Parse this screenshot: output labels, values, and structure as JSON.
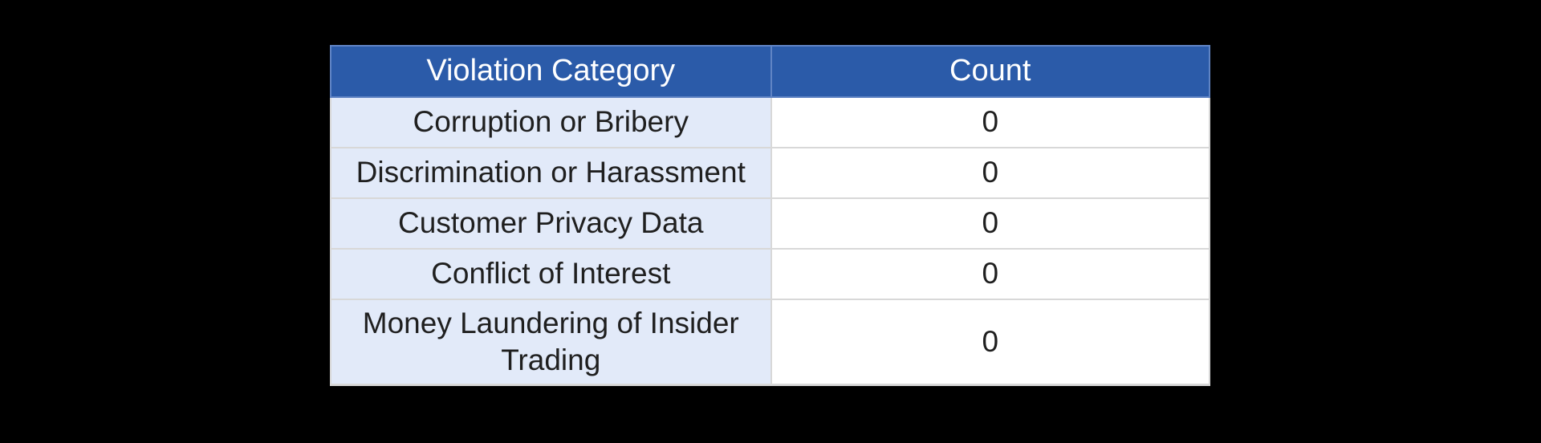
{
  "chart_data": {
    "type": "table",
    "title": "",
    "columns": [
      "Violation Category",
      "Count"
    ],
    "rows": [
      [
        "Corruption or Bribery",
        "0"
      ],
      [
        "Discrimination or Harassment",
        "0"
      ],
      [
        "Customer Privacy Data",
        "0"
      ],
      [
        "Conflict of Interest",
        "0"
      ],
      [
        "Money Laundering of Insider Trading",
        "0"
      ]
    ]
  },
  "colors": {
    "canvas-bg": "#000000",
    "header-fill": "#2B5BA9",
    "header-border": "#6084C4",
    "header-text": "#FFFFFF",
    "category-fill": "#E2EAF9",
    "count-fill": "#FFFFFF",
    "grid-line": "#D8D8D8",
    "body-text": "#1F1F1F"
  }
}
